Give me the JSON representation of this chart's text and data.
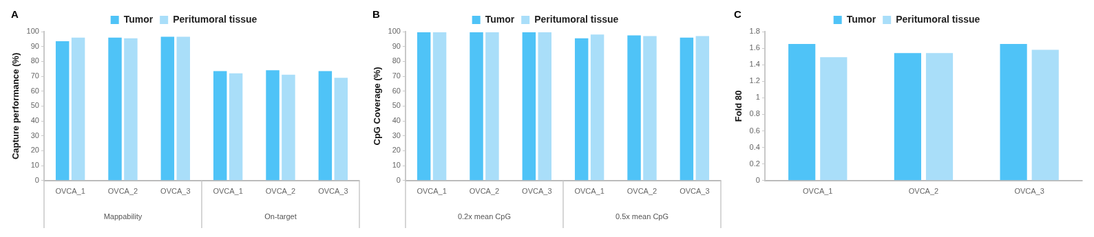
{
  "chart_data": [
    {
      "type": "bar",
      "title": "A",
      "ylabel": "Capture performance (%)",
      "categories": [
        "OVCA_1",
        "OVCA_2",
        "OVCA_3",
        "OVCA_1",
        "OVCA_2",
        "OVCA_3"
      ],
      "annotations": [
        "Mappability",
        "On-target"
      ],
      "series": [
        {
          "name": "Tumor",
          "color": "#4fc3f7",
          "values": [
            93.5,
            96,
            96.5,
            73.5,
            74,
            73.5
          ]
        },
        {
          "name": "Peritumoral tissue",
          "color": "#a9def9",
          "values": [
            96,
            95.5,
            96.5,
            72,
            71,
            69
          ]
        }
      ],
      "ylim": [
        0,
        100
      ],
      "yticks": [
        0,
        10,
        20,
        30,
        40,
        50,
        60,
        70,
        80,
        90,
        100
      ],
      "grid": false,
      "legend": "top"
    },
    {
      "type": "bar",
      "title": "B",
      "ylabel": "CpG Coverage (%)",
      "categories": [
        "OVCA_1",
        "OVCA_2",
        "OVCA_3",
        "OVCA_1",
        "OVCA_2",
        "OVCA_3"
      ],
      "annotations": [
        "0.2x mean CpG",
        "0.5x mean CpG"
      ],
      "series": [
        {
          "name": "Tumor",
          "color": "#4fc3f7",
          "values": [
            99.5,
            99.5,
            99.5,
            95.5,
            97.5,
            96
          ]
        },
        {
          "name": "Peritumoral tissue",
          "color": "#a9def9",
          "values": [
            99.5,
            99.5,
            99.5,
            98,
            97,
            97
          ]
        }
      ],
      "ylim": [
        0,
        100
      ],
      "yticks": [
        0,
        10,
        20,
        30,
        40,
        50,
        60,
        70,
        80,
        90,
        100
      ],
      "grid": false,
      "legend": "top"
    },
    {
      "type": "bar",
      "title": "C",
      "ylabel": "Fold 80",
      "categories": [
        "OVCA_1",
        "OVCA_2",
        "OVCA_3"
      ],
      "series": [
        {
          "name": "Tumor",
          "color": "#4fc3f7",
          "values": [
            1.65,
            1.54,
            1.65
          ]
        },
        {
          "name": "Peritumoral tissue",
          "color": "#a9def9",
          "values": [
            1.49,
            1.54,
            1.58
          ]
        }
      ],
      "ylim": [
        0,
        1.8
      ],
      "yticks": [
        0,
        0.2,
        0.4,
        0.6,
        0.8,
        1,
        1.2,
        1.4,
        1.6,
        1.8
      ],
      "grid": false,
      "legend": "top"
    }
  ]
}
